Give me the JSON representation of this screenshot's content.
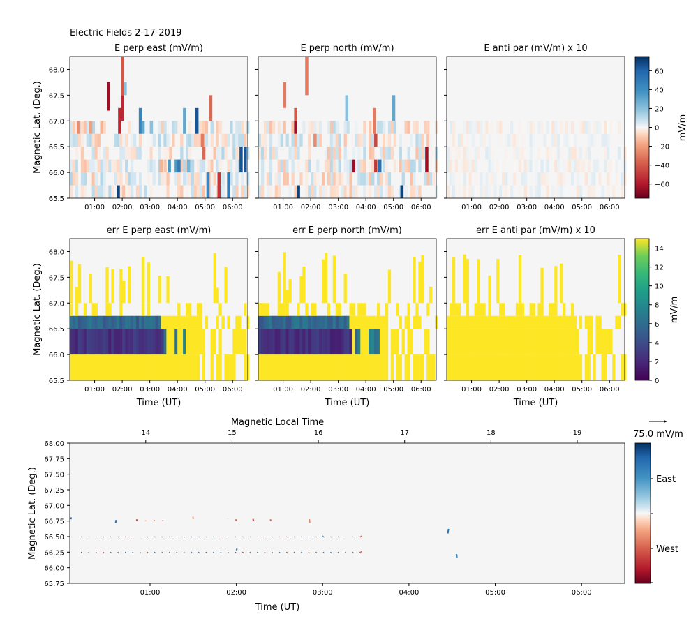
{
  "figure_title": "Electric Fields 2-17-2019",
  "time_axis": {
    "tick_labels": [
      "01:00",
      "02:00",
      "03:00",
      "04:00",
      "05:00",
      "06:00"
    ],
    "tick_hours": [
      1,
      2,
      3,
      4,
      5,
      6
    ],
    "range_hours": [
      0.1,
      6.55
    ],
    "xlabel": "Time (UT)"
  },
  "mlat_axis": {
    "ylabel": "Magnetic Lat. (Deg.)",
    "range": [
      65.5,
      68.25
    ],
    "ticks": [
      "65.5",
      "66.0",
      "66.5",
      "67.0",
      "67.5",
      "68.0"
    ]
  },
  "field_colorbar": {
    "label": "mV/m",
    "range": [
      -75,
      75
    ],
    "ticks": [
      "60",
      "40",
      "20",
      "0",
      "−20",
      "−40",
      "−60"
    ],
    "tick_values": [
      60,
      40,
      20,
      0,
      -20,
      -40,
      -60
    ],
    "colormap": "RdBu"
  },
  "error_colorbar": {
    "label": "mV/m",
    "range": [
      0,
      15
    ],
    "ticks": [
      "14",
      "12",
      "10",
      "8",
      "6",
      "4",
      "2",
      "0"
    ],
    "tick_values": [
      14,
      12,
      10,
      8,
      6,
      4,
      2,
      0
    ],
    "colormap": "viridis"
  },
  "quiver_panel": {
    "top_axis_label": "Magnetic Local Time",
    "mlt_ticks": [
      "14",
      "15",
      "16",
      "17",
      "18",
      "19"
    ],
    "mlt_tick_hours": [
      0.95,
      1.95,
      2.95,
      3.95,
      4.95,
      5.95
    ],
    "ylabel": "Magnetic Lat. (Deg.)",
    "xlabel": "Time (UT)",
    "y_range": [
      65.75,
      68.0
    ],
    "y_ticks": [
      "68.00",
      "67.75",
      "67.50",
      "67.25",
      "67.00",
      "66.75",
      "66.50",
      "66.25",
      "66.00",
      "65.75"
    ],
    "y_tick_values": [
      68.0,
      67.75,
      67.5,
      67.25,
      67.0,
      66.75,
      66.5,
      66.25,
      66.0,
      65.75
    ],
    "x_range_hours": [
      0.07,
      6.5
    ],
    "reference_arrow_label": "75.0 mV/m",
    "colorbar_labels": [
      "East",
      "West"
    ]
  },
  "chart_data": [
    {
      "type": "heatmap",
      "title": "E perp east (mV/m)",
      "xlabel": "",
      "ylabel": "Magnetic Lat. (Deg.)",
      "cells": [
        [
          1.45,
          67.2,
          67.75,
          -65
        ],
        [
          1.95,
          67.0,
          67.5,
          -55
        ],
        [
          1.95,
          67.5,
          68.25,
          -40
        ],
        [
          2.05,
          67.5,
          67.75,
          20
        ],
        [
          1.85,
          66.75,
          67.25,
          -55
        ],
        [
          2.6,
          66.75,
          67.25,
          45
        ],
        [
          2.7,
          66.75,
          67.0,
          30
        ],
        [
          3.0,
          66.75,
          67.0,
          20
        ],
        [
          4.2,
          66.75,
          67.25,
          30
        ],
        [
          4.65,
          66.75,
          67.25,
          65
        ],
        [
          5.15,
          67.0,
          67.5,
          -35
        ],
        [
          4.85,
          66.5,
          66.75,
          -30
        ],
        [
          4.9,
          66.25,
          66.5,
          -35
        ],
        [
          3.65,
          66.0,
          66.25,
          35
        ],
        [
          3.9,
          66.0,
          66.25,
          35
        ],
        [
          4.0,
          66.0,
          66.25,
          50
        ],
        [
          4.35,
          66.0,
          66.25,
          25
        ],
        [
          5.05,
          65.5,
          66.0,
          45
        ],
        [
          5.45,
          65.5,
          66.0,
          -50
        ],
        [
          5.8,
          65.5,
          66.0,
          50
        ],
        [
          6.4,
          66.0,
          66.5,
          65
        ],
        [
          6.25,
          66.0,
          66.5,
          65
        ],
        [
          1.8,
          65.5,
          65.75,
          70
        ],
        [
          0.35,
          66.75,
          67.0,
          -25
        ],
        [
          0.8,
          66.75,
          67.0,
          -20
        ],
        [
          1.2,
          66.75,
          67.0,
          -15
        ],
        [
          3.35,
          66.0,
          66.25,
          -15
        ]
      ]
    },
    {
      "type": "heatmap",
      "title": "E perp north (mV/m)",
      "xlabel": "",
      "ylabel": "",
      "cells": [
        [
          1.8,
          67.5,
          68.25,
          -30
        ],
        [
          1.4,
          66.75,
          67.0,
          -65
        ],
        [
          1.4,
          67.0,
          67.25,
          -40
        ],
        [
          1.0,
          67.25,
          67.75,
          -30
        ],
        [
          3.25,
          67.0,
          67.5,
          20
        ],
        [
          4.25,
          66.75,
          67.25,
          -30
        ],
        [
          4.95,
          67.0,
          67.5,
          30
        ],
        [
          4.3,
          66.5,
          66.75,
          -45
        ],
        [
          4.45,
          66.0,
          66.25,
          55
        ],
        [
          3.5,
          66.0,
          66.25,
          -65
        ],
        [
          4.3,
          66.0,
          66.25,
          -50
        ],
        [
          6.15,
          66.0,
          66.5,
          -65
        ],
        [
          1.5,
          65.5,
          65.75,
          70
        ],
        [
          5.25,
          65.5,
          65.75,
          70
        ],
        [
          2.1,
          66.5,
          66.75,
          -25
        ]
      ]
    },
    {
      "type": "heatmap",
      "title": "E anti par (mV/m) x 10",
      "xlabel": "",
      "ylabel": "",
      "cells": []
    },
    {
      "type": "heatmap",
      "title": "err E perp east (mV/m)",
      "xlabel": "Time (UT)",
      "ylabel": "Magnetic Lat. (Deg.)",
      "columns_hours": [
        0.1,
        6.55
      ]
    },
    {
      "type": "heatmap",
      "title": "err E perp north (mV/m)",
      "xlabel": "Time (UT)",
      "ylabel": ""
    },
    {
      "type": "heatmap",
      "title": "err E anti par (mV/m) x 10",
      "xlabel": "Time (UT)",
      "ylabel": ""
    },
    {
      "type": "scatter",
      "title": "",
      "xlabel": "Time (UT)",
      "ylabel": "Magnetic Lat. (Deg.)",
      "arrows": [
        [
          0.08,
          66.78,
          35,
          20
        ],
        [
          0.6,
          66.72,
          30,
          35
        ],
        [
          0.85,
          66.75,
          -25,
          20
        ],
        [
          0.95,
          66.75,
          -10,
          8
        ],
        [
          1.05,
          66.75,
          -15,
          12
        ],
        [
          1.15,
          66.75,
          -15,
          10
        ],
        [
          1.5,
          66.78,
          -10,
          30
        ],
        [
          1.9,
          66.78,
          -5,
          5
        ],
        [
          2.0,
          66.75,
          -20,
          20
        ],
        [
          2.2,
          66.75,
          -25,
          25
        ],
        [
          2.4,
          66.75,
          -20,
          20
        ],
        [
          2.85,
          66.72,
          -15,
          45
        ],
        [
          4.45,
          66.55,
          30,
          55
        ],
        [
          4.55,
          66.22,
          25,
          -40
        ],
        [
          2.0,
          66.28,
          30,
          20
        ],
        [
          3.0,
          66.5,
          20,
          10
        ],
        [
          3.45,
          66.5,
          -20,
          10
        ],
        [
          3.45,
          66.25,
          -20,
          10
        ]
      ],
      "small_rows_lat": [
        66.5,
        66.25
      ],
      "small_rows_hours": [
        0.2,
        3.45
      ]
    }
  ]
}
